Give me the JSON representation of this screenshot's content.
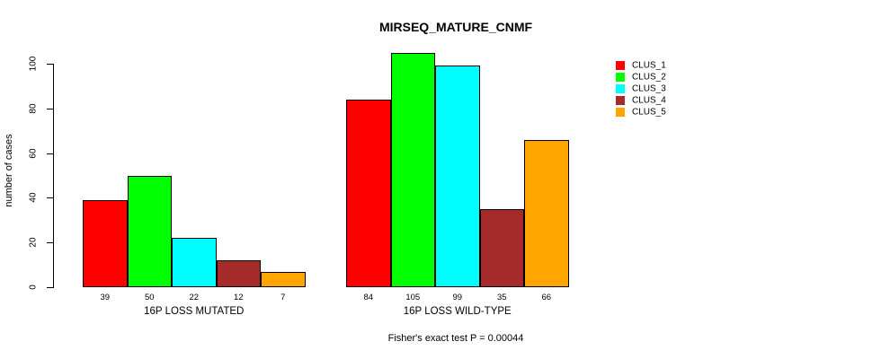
{
  "title": "MIRSEQ_MATURE_CNMF",
  "footer": "Fisher's exact test P = 0.00044",
  "chart_data": {
    "type": "bar",
    "title": "MIRSEQ_MATURE_CNMF",
    "xlabel": "",
    "ylabel": "number of cases",
    "ylim": [
      0,
      105
    ],
    "yticks": [
      0,
      20,
      40,
      60,
      80,
      100
    ],
    "grid": false,
    "legend_position": "right",
    "bar_value_labels": true,
    "categories": [
      "16P LOSS MUTATED",
      "16P LOSS WILD-TYPE"
    ],
    "series": [
      {
        "name": "CLUS_1",
        "color": "#FF0000",
        "values": [
          39,
          84
        ]
      },
      {
        "name": "CLUS_2",
        "color": "#00FF00",
        "values": [
          50,
          105
        ]
      },
      {
        "name": "CLUS_3",
        "color": "#00FFFF",
        "values": [
          22,
          99
        ]
      },
      {
        "name": "CLUS_4",
        "color": "#A52A2A",
        "values": [
          12,
          35
        ]
      },
      {
        "name": "CLUS_5",
        "color": "#FFA500",
        "values": [
          7,
          66
        ]
      }
    ],
    "annotation": "Fisher's exact test P = 0.00044"
  }
}
